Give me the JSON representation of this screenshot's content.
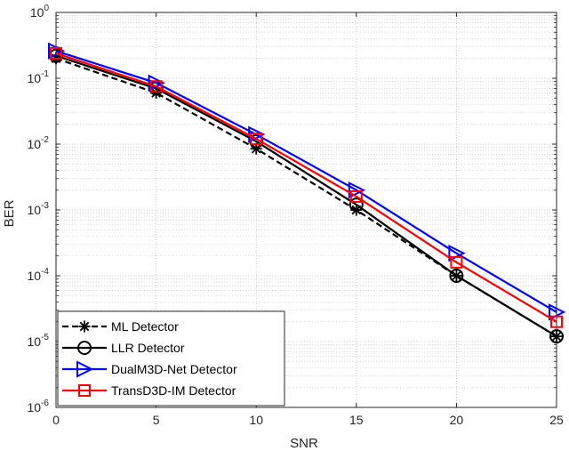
{
  "chart_data": {
    "type": "line",
    "title": "",
    "xlabel": "SNR",
    "ylabel": "BER",
    "x": [
      0,
      5,
      10,
      15,
      20,
      25
    ],
    "xlim": [
      0,
      25
    ],
    "ylim": [
      1e-06,
      1
    ],
    "yscale": "log",
    "x_ticks": [
      "0",
      "5",
      "10",
      "15",
      "20",
      "25"
    ],
    "y_ticks": [
      {
        "base": "10",
        "exp": "0"
      },
      {
        "base": "10",
        "exp": "-1"
      },
      {
        "base": "10",
        "exp": "-2"
      },
      {
        "base": "10",
        "exp": "-3"
      },
      {
        "base": "10",
        "exp": "-4"
      },
      {
        "base": "10",
        "exp": "-5"
      },
      {
        "base": "10",
        "exp": "-6"
      }
    ],
    "grid": true,
    "minor_grid": true,
    "legend_position": "bottom-left",
    "series": [
      {
        "name": "ML Detector",
        "color": "#000000",
        "linestyle": "dashed",
        "marker": "asterisk",
        "values": [
          0.2,
          0.06,
          0.0085,
          0.001,
          0.0001,
          1.2e-05
        ]
      },
      {
        "name": "LLR Detector",
        "color": "#000000",
        "linestyle": "solid",
        "marker": "circle",
        "values": [
          0.22,
          0.07,
          0.011,
          0.0012,
          0.0001,
          1.2e-05
        ]
      },
      {
        "name": "DualM3D-Net Detector",
        "color": "#0000ff",
        "linestyle": "solid",
        "marker": "triangle-right",
        "values": [
          0.26,
          0.085,
          0.014,
          0.002,
          0.00022,
          2.8e-05
        ]
      },
      {
        "name": "TransD3D-IM Detector",
        "color": "#ff0000",
        "linestyle": "solid",
        "marker": "square",
        "values": [
          0.24,
          0.075,
          0.012,
          0.0016,
          0.00016,
          2e-05
        ]
      }
    ]
  }
}
